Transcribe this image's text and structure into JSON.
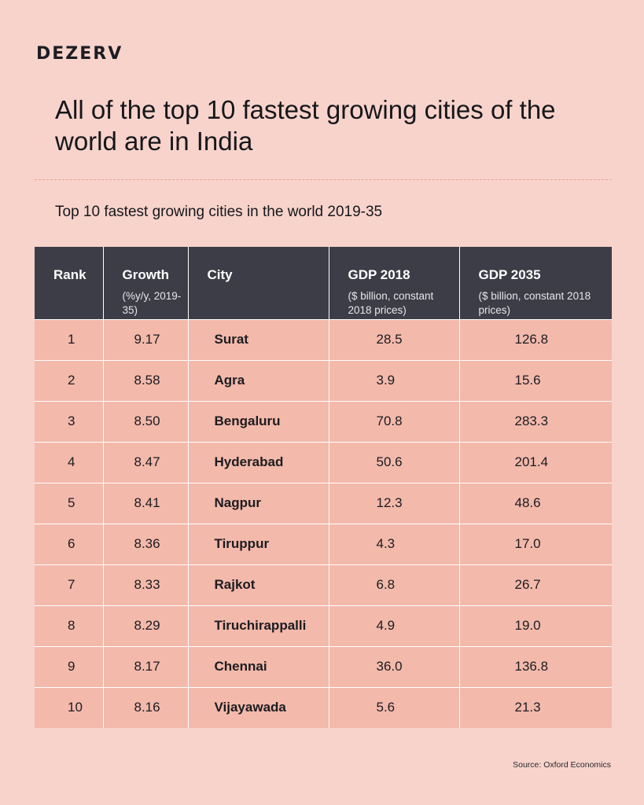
{
  "brand": "DEZERV",
  "headline": "All of the top 10 fastest growing cities of the world are in India",
  "chart_data": {
    "type": "table",
    "title": "Top 10 fastest growing cities in the world 2019-35",
    "columns": [
      {
        "label": "Rank",
        "sub": ""
      },
      {
        "label": "Growth",
        "sub": "(%y/y, 2019-35)"
      },
      {
        "label": "City",
        "sub": ""
      },
      {
        "label": "GDP 2018",
        "sub": "($ billion, constant 2018 prices)"
      },
      {
        "label": "GDP 2035",
        "sub": "($ billion, constant 2018 prices)"
      }
    ],
    "rows": [
      [
        "1",
        "9.17",
        "Surat",
        "28.5",
        "126.8"
      ],
      [
        "2",
        "8.58",
        "Agra",
        "3.9",
        "15.6"
      ],
      [
        "3",
        "8.50",
        "Bengaluru",
        "70.8",
        "283.3"
      ],
      [
        "4",
        "8.47",
        "Hyderabad",
        "50.6",
        "201.4"
      ],
      [
        "5",
        "8.41",
        "Nagpur",
        "12.3",
        "48.6"
      ],
      [
        "6",
        "8.36",
        "Tiruppur",
        "4.3",
        "17.0"
      ],
      [
        "7",
        "8.33",
        "Rajkot",
        "6.8",
        "26.7"
      ],
      [
        "8",
        "8.29",
        "Tiruchirappalli",
        "4.9",
        "19.0"
      ],
      [
        "9",
        "8.17",
        "Chennai",
        "36.0",
        "136.8"
      ],
      [
        "10",
        "8.16",
        "Vijayawada",
        "5.6",
        "21.3"
      ]
    ]
  },
  "source": "Source: Oxford Economics"
}
